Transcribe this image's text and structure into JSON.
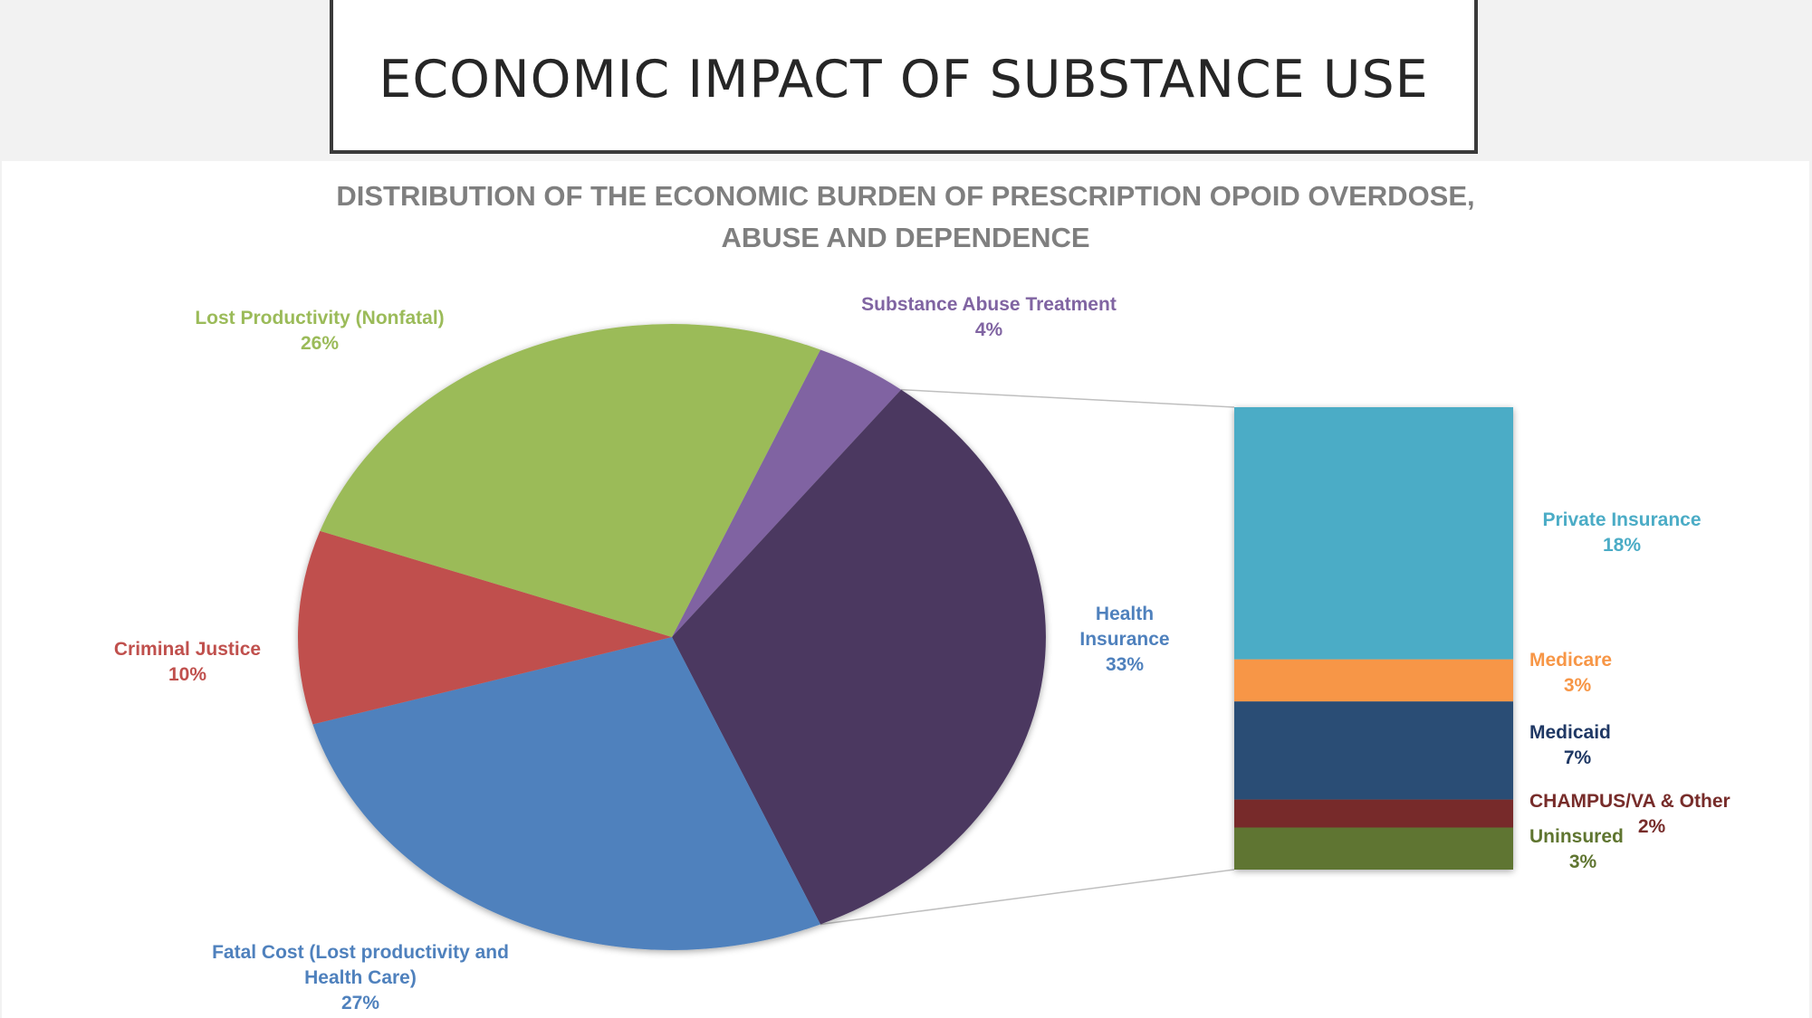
{
  "slide": {
    "title": "ECONOMIC IMPACT OF SUBSTANCE USE"
  },
  "chart_data": {
    "type": "pie",
    "subtype": "bar-of-pie",
    "title_lines": [
      "DISTRIBUTION OF THE ECONOMIC BURDEN OF PRESCRIPTION OPOID OVERDOSE,",
      "ABUSE AND DEPENDENCE"
    ],
    "slices": [
      {
        "key": "substance",
        "label_lines": [
          "Substance Abuse Treatment"
        ],
        "value": 4,
        "display": "4%",
        "color": "#8064a2",
        "label_color": "#8064a2"
      },
      {
        "key": "health",
        "label_lines": [
          "Health",
          "Insurance"
        ],
        "value": 33,
        "display": "33%",
        "color": "#4b3860",
        "label_color": "#4f81bd"
      },
      {
        "key": "fatal",
        "label_lines": [
          "Fatal Cost (Lost productivity and",
          "Health Care)"
        ],
        "value": 27,
        "display": "27%",
        "color": "#4f81bd",
        "label_color": "#4f81bd"
      },
      {
        "key": "criminal",
        "label_lines": [
          "Criminal Justice"
        ],
        "value": 10,
        "display": "10%",
        "color": "#c0504d",
        "label_color": "#c0504d"
      },
      {
        "key": "lost",
        "label_lines": [
          "Lost Productivity (Nonfatal)"
        ],
        "value": 26,
        "display": "26%",
        "color": "#9bbb59",
        "label_color": "#9bbb59"
      }
    ],
    "breakdown_of": "health",
    "breakdown": [
      {
        "key": "private",
        "label": "Private Insurance",
        "value": 18,
        "display": "18%",
        "color": "#4bacc6",
        "label_color": "#4bacc6"
      },
      {
        "key": "medicare",
        "label": "Medicare",
        "value": 3,
        "display": "3%",
        "color": "#f79646",
        "label_color": "#f79646"
      },
      {
        "key": "medicaid",
        "label": "Medicaid",
        "value": 7,
        "display": "7%",
        "color": "#2c4d75",
        "label_color": "#1f3864"
      },
      {
        "key": "champus",
        "label": "CHAMPUS/VA & Other",
        "value": 2,
        "display": "2%",
        "color": "#772c2a",
        "label_color": "#772c2a"
      },
      {
        "key": "uninsured",
        "label": "Uninsured",
        "value": 3,
        "display": "3%",
        "color": "#5f7530",
        "label_color": "#5f7530"
      }
    ]
  }
}
